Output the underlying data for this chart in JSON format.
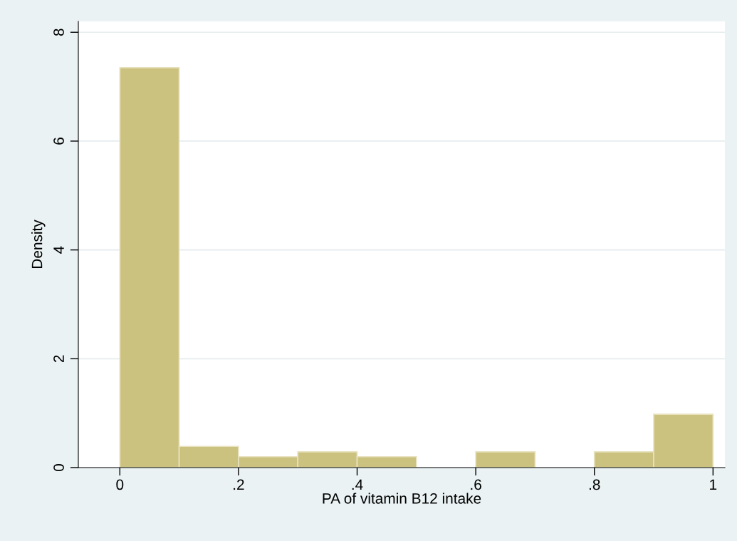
{
  "chart_data": {
    "type": "histogram",
    "xlabel": "PA of vitamin B12 intake",
    "ylabel": "Density",
    "bins": [
      0,
      0.1,
      0.2,
      0.3,
      0.4,
      0.5,
      0.6,
      0.7,
      0.8,
      0.9,
      1.0
    ],
    "values": [
      7.35,
      0.39,
      0.2,
      0.29,
      0.2,
      0,
      0.29,
      0,
      0.29,
      0.98
    ],
    "color": "#ccc27f",
    "xlim": [
      -0.07,
      1.02
    ],
    "xticks": [
      0,
      {
        "value": 0.2,
        "label": ".2"
      },
      {
        "value": 0.4,
        "label": ".4"
      },
      {
        "value": 0.6,
        "label": ".6"
      },
      {
        "value": 0.8,
        "label": ".8"
      },
      1
    ],
    "ylim": [
      0,
      8.2
    ],
    "yticks": [
      0,
      2,
      4,
      6,
      8
    ],
    "grid": "y"
  }
}
